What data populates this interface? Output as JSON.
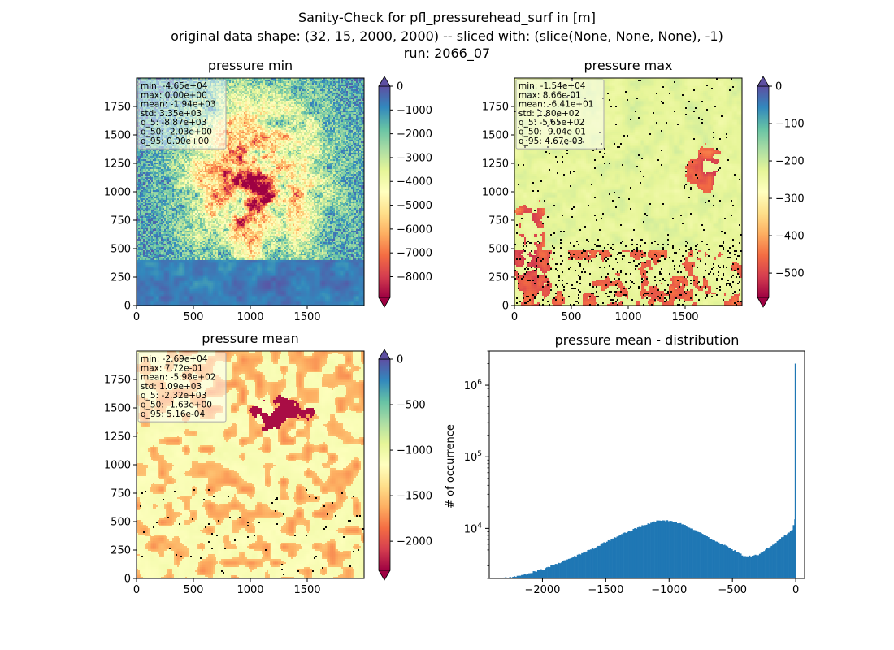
{
  "suptitle": {
    "line1": "Sanity-Check for pfl_pressurehead_surf in [m]",
    "line2": "original data shape: (32, 15, 2000, 2000) -- sliced with: (slice(None, None, None), -1)",
    "line3": "run: 2066_07"
  },
  "colors": {
    "spectral": [
      "#9e0142",
      "#d53e4f",
      "#f46d43",
      "#fdae61",
      "#fee08b",
      "#ffffbf",
      "#e6f598",
      "#abdda4",
      "#66c2a5",
      "#3288bd",
      "#5e4fa2"
    ],
    "hist_bar": "#1f77b4"
  },
  "chart_data": [
    {
      "type": "heatmap",
      "title": "pressure min",
      "xticks": [
        "0",
        "500",
        "1000",
        "1500"
      ],
      "yticks": [
        "0",
        "250",
        "500",
        "750",
        "1000",
        "1250",
        "1500",
        "1750"
      ],
      "xlim": [
        0,
        2000
      ],
      "ylim": [
        0,
        2000
      ],
      "colorbar": {
        "ticks": [
          "0",
          "−1000",
          "−2000",
          "−3000",
          "−4000",
          "−5000",
          "−6000",
          "−7000",
          "−8000"
        ],
        "range": [
          -8870,
          0
        ],
        "extend": "both"
      },
      "stats": [
        "min: -4.65e+04",
        "max: 0.00e+00",
        "mean: -1.94e+03",
        "std: 3.35e+03",
        "q_5: -8.87e+03",
        "q_50: -2.03e+00",
        "q_95: 0.00e+00"
      ],
      "base_level": 0.95
    },
    {
      "type": "heatmap",
      "title": "pressure max",
      "xticks": [
        "0",
        "500",
        "1000",
        "1500"
      ],
      "yticks": [
        "0",
        "250",
        "500",
        "750",
        "1000",
        "1250",
        "1500",
        "1750"
      ],
      "xlim": [
        0,
        2000
      ],
      "ylim": [
        0,
        2000
      ],
      "colorbar": {
        "ticks": [
          "0",
          "−100",
          "−200",
          "−300",
          "−400",
          "−500"
        ],
        "range": [
          -565,
          0
        ],
        "extend": "both"
      },
      "stats": [
        "min: -1.54e+04",
        "max: 8.66e-01",
        "mean: -6.41e+01",
        "std: 1.80e+02",
        "q_5: -5.65e+02",
        "q_50: -9.04e-01",
        "q_95: 4.67e-03"
      ],
      "base_level": 0.5
    },
    {
      "type": "heatmap",
      "title": "pressure mean",
      "xticks": [
        "0",
        "500",
        "1000",
        "1500"
      ],
      "yticks": [
        "0",
        "250",
        "500",
        "750",
        "1000",
        "1250",
        "1500",
        "1750"
      ],
      "xlim": [
        0,
        2000
      ],
      "ylim": [
        0,
        2000
      ],
      "colorbar": {
        "ticks": [
          "0",
          "−500",
          "−1000",
          "−1500",
          "−2000"
        ],
        "range": [
          -2320,
          0
        ],
        "extend": "both"
      },
      "stats": [
        "min: -2.69e+04",
        "max: 7.72e-01",
        "mean: -5.98e+02",
        "std: 1.09e+03",
        "q_5: -2.32e+03",
        "q_50: -1.63e+00",
        "q_95: 5.16e-04"
      ],
      "base_level": 0.5
    },
    {
      "type": "bar",
      "title": "pressure mean - distribution",
      "ylabel": "# of occurrence",
      "yscale": "log",
      "xlim": [
        -2420,
        70
      ],
      "ylim": [
        2000,
        3000000
      ],
      "xticks": [
        "−2000",
        "−1500",
        "−1000",
        "−500",
        "0"
      ],
      "ytick_labels": {
        "base": "10",
        "exps": [
          "4",
          "5",
          "6"
        ]
      },
      "x": [
        -2320,
        -2200,
        -2000,
        -1800,
        -1600,
        -1400,
        -1200,
        -1100,
        -1000,
        -900,
        -800,
        -700,
        -600,
        -500,
        -400,
        -300,
        -200,
        -100,
        -60,
        -30,
        -15,
        -5,
        0
      ],
      "y": [
        2000,
        2150,
        2700,
        3700,
        5300,
        8000,
        11200,
        12800,
        12800,
        11500,
        9500,
        7500,
        6200,
        5000,
        4000,
        4300,
        5700,
        7800,
        8500,
        10000,
        12500,
        16000,
        2000000
      ]
    }
  ]
}
